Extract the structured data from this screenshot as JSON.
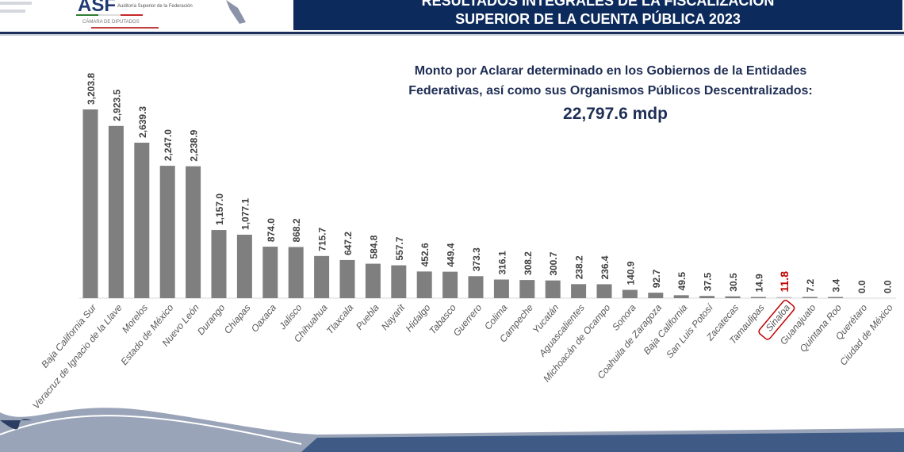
{
  "header": {
    "logo_text": "ASF",
    "logo_subtext": "Auditoría Superior de la Federación",
    "logo_caption": "CÁMARA DE DIPUTADOS",
    "title_line1": "RESULTADOS INTEGRALES DE LA FISCALIZACIÓN",
    "title_line2": "SUPERIOR DE LA CUENTA PÚBLICA 2023",
    "banner_color": "#0d2a5c"
  },
  "chart_data": {
    "type": "bar",
    "title": "Monto por Aclarar determinado en los Gobiernos de la Entidades Federativas, así como sus Organismos Públicos Descentralizados:",
    "title_line1": "Monto por Aclarar determinado en los Gobiernos de la Entidades",
    "title_line2": "Federativas, así como sus Organismos Públicos Descentralizados:",
    "total": "22,797.6 mdp",
    "categories": [
      "Baja California Sur",
      "Veracruz de Ignacio de la Llave",
      "Morelos",
      "Estado de México",
      "Nuevo León",
      "Durango",
      "Chiapas",
      "Oaxaca",
      "Jalisco",
      "Chihuahua",
      "Tlaxcala",
      "Puebla",
      "Nayarit",
      "Hidalgo",
      "Tabasco",
      "Guerrero",
      "Colima",
      "Campeche",
      "Yucatán",
      "Aguascalientes",
      "Michoacán de Ocampo",
      "Sonora",
      "Coahuila de Zaragoza",
      "Baja California",
      "San Luis Potosí",
      "Zacatecas",
      "Tamaulipas",
      "Sinaloa",
      "Guanajuato",
      "Quintana Roo",
      "Querétaro",
      "Ciudad de México"
    ],
    "values": [
      3203.8,
      2923.5,
      2639.3,
      2247.0,
      2238.9,
      1157.0,
      1077.1,
      874.0,
      868.2,
      715.7,
      647.2,
      584.8,
      557.7,
      452.6,
      449.4,
      373.3,
      316.1,
      308.2,
      300.7,
      238.2,
      236.4,
      140.9,
      92.7,
      49.5,
      37.5,
      30.5,
      14.9,
      11.8,
      7.2,
      3.4,
      0.0,
      0.0
    ],
    "value_labels": [
      "3,203.8",
      "2,923.5",
      "2,639.3",
      "2,247.0",
      "2,238.9",
      "1,157.0",
      "1,077.1",
      "874.0",
      "868.2",
      "715.7",
      "647.2",
      "584.8",
      "557.7",
      "452.6",
      "449.4",
      "373.3",
      "316.1",
      "308.2",
      "300.7",
      "238.2",
      "236.4",
      "140.9",
      "92.7",
      "49.5",
      "37.5",
      "30.5",
      "14.9",
      "11.8",
      "7.2",
      "3.4",
      "0.0",
      "0.0"
    ],
    "highlight": "Sinaloa",
    "highlight_color": "#c00000",
    "bar_color": "#7f7f7f",
    "ylim": [
      0,
      3300
    ],
    "grid": false
  }
}
